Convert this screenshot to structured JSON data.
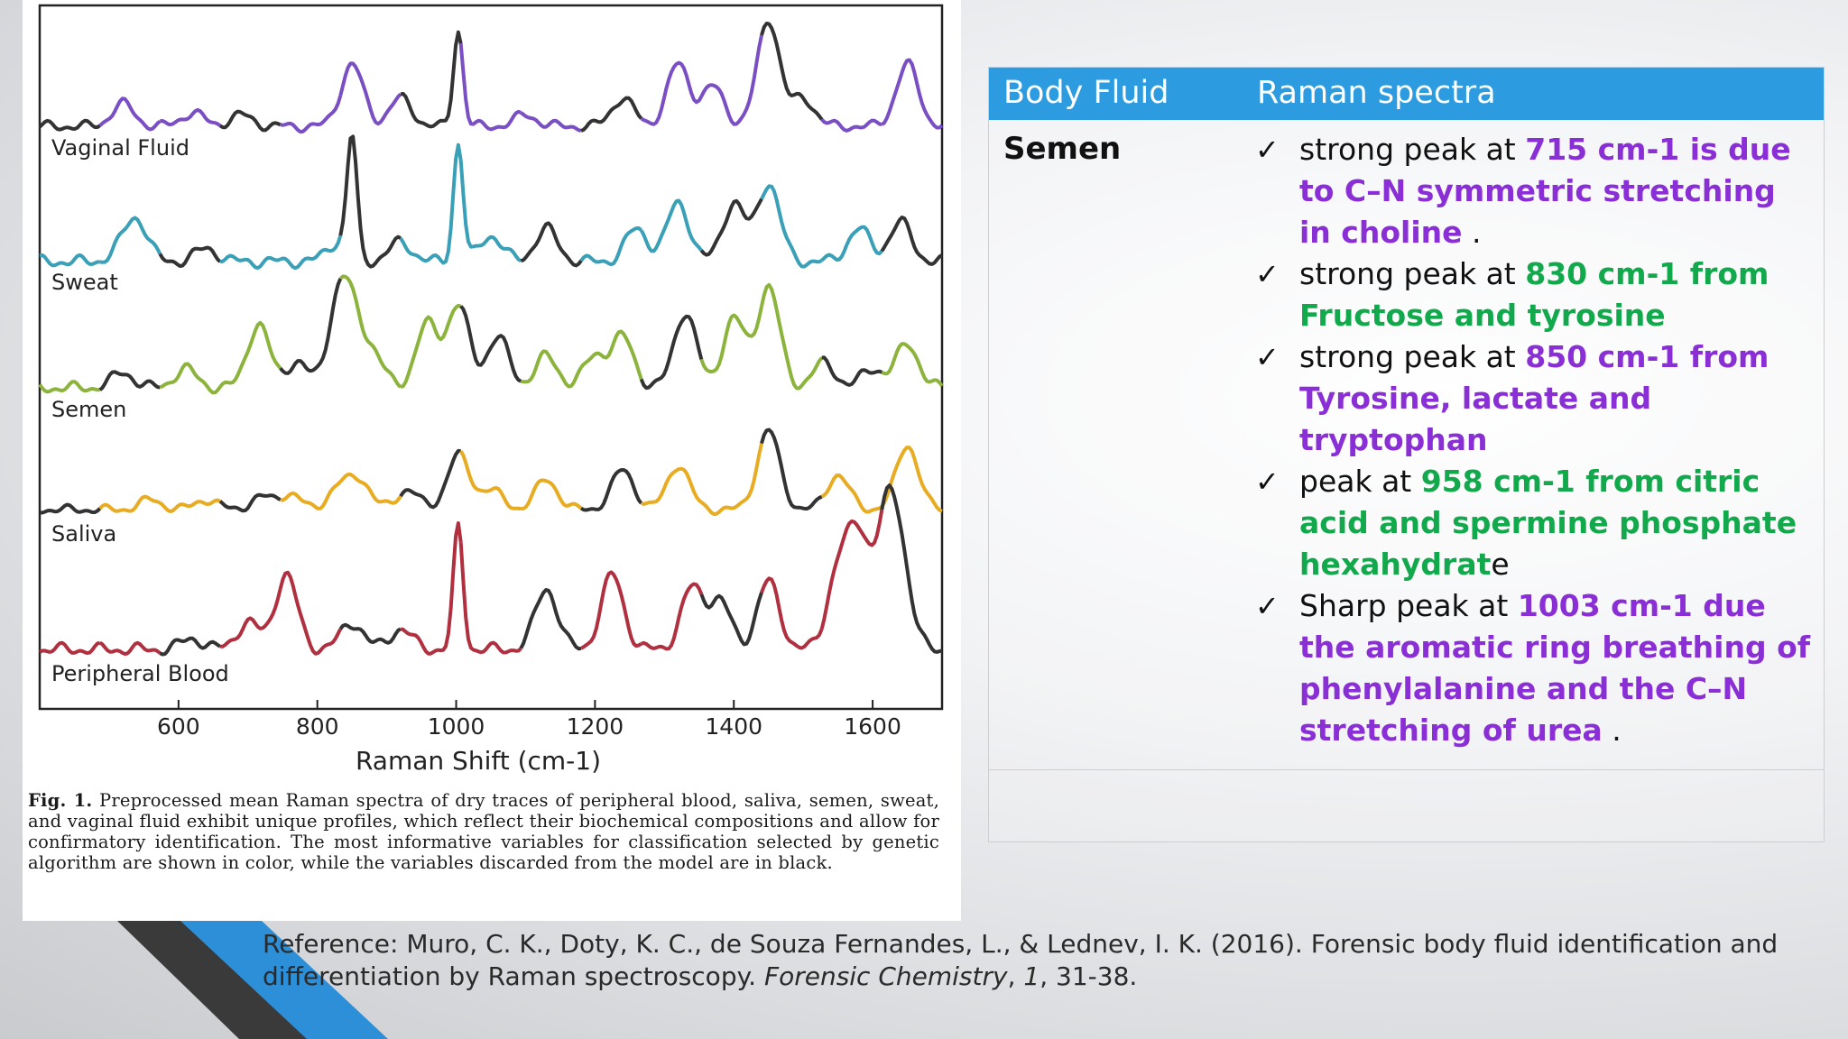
{
  "chart_data": {
    "type": "line",
    "xlabel": "Raman Shift (cm-1)",
    "x_ticks": [
      600,
      800,
      1000,
      1200,
      1400,
      1600
    ],
    "xlim": [
      400,
      1700
    ],
    "series": [
      {
        "name": "Vaginal Fluid",
        "color": "#7b4fc4",
        "peaks": [
          [
            520,
            0.2
          ],
          [
            620,
            0.12
          ],
          [
            690,
            0.1
          ],
          [
            850,
            0.55
          ],
          [
            920,
            0.25
          ],
          [
            1003,
            0.85
          ],
          [
            1100,
            0.1
          ],
          [
            1240,
            0.25
          ],
          [
            1320,
            0.55
          ],
          [
            1370,
            0.35
          ],
          [
            1450,
            0.95
          ],
          [
            1500,
            0.25
          ],
          [
            1650,
            0.55
          ]
        ]
      },
      {
        "name": "Sweat",
        "color": "#3aa0b8",
        "peaks": [
          [
            520,
            0.08
          ],
          [
            540,
            0.3
          ],
          [
            640,
            0.1
          ],
          [
            830,
            0.15
          ],
          [
            850,
            0.9
          ],
          [
            920,
            0.15
          ],
          [
            1003,
            0.9
          ],
          [
            1050,
            0.2
          ],
          [
            1130,
            0.25
          ],
          [
            1260,
            0.25
          ],
          [
            1320,
            0.45
          ],
          [
            1400,
            0.45
          ],
          [
            1450,
            0.6
          ],
          [
            1580,
            0.25
          ],
          [
            1640,
            0.3
          ]
        ]
      },
      {
        "name": "Semen",
        "color": "#8cb43c",
        "peaks": [
          [
            520,
            0.12
          ],
          [
            610,
            0.15
          ],
          [
            715,
            0.5
          ],
          [
            770,
            0.2
          ],
          [
            830,
            0.6
          ],
          [
            850,
            0.45
          ],
          [
            880,
            0.25
          ],
          [
            958,
            0.5
          ],
          [
            1003,
            0.65
          ],
          [
            1060,
            0.4
          ],
          [
            1130,
            0.25
          ],
          [
            1200,
            0.25
          ],
          [
            1240,
            0.4
          ],
          [
            1330,
            0.6
          ],
          [
            1400,
            0.55
          ],
          [
            1450,
            0.8
          ],
          [
            1530,
            0.2
          ],
          [
            1600,
            0.15
          ],
          [
            1650,
            0.35
          ]
        ]
      },
      {
        "name": "Saliva",
        "color": "#e8ac22",
        "peaks": [
          [
            560,
            0.1
          ],
          [
            640,
            0.1
          ],
          [
            720,
            0.12
          ],
          [
            760,
            0.15
          ],
          [
            830,
            0.2
          ],
          [
            860,
            0.3
          ],
          [
            930,
            0.2
          ],
          [
            1003,
            0.55
          ],
          [
            1050,
            0.2
          ],
          [
            1130,
            0.3
          ],
          [
            1240,
            0.4
          ],
          [
            1320,
            0.45
          ],
          [
            1450,
            0.8
          ],
          [
            1550,
            0.35
          ],
          [
            1650,
            0.65
          ]
        ]
      },
      {
        "name": "Peripheral Blood",
        "color": "#b03040",
        "peaks": [
          [
            620,
            0.08
          ],
          [
            700,
            0.2
          ],
          [
            755,
            0.55
          ],
          [
            850,
            0.2
          ],
          [
            920,
            0.15
          ],
          [
            1003,
            0.9
          ],
          [
            1130,
            0.45
          ],
          [
            1225,
            0.55
          ],
          [
            1340,
            0.45
          ],
          [
            1380,
            0.35
          ],
          [
            1450,
            0.5
          ],
          [
            1550,
            0.55
          ],
          [
            1580,
            0.8
          ],
          [
            1620,
            0.85
          ],
          [
            1640,
            0.55
          ]
        ]
      }
    ]
  },
  "caption": {
    "label": "Fig. 1.",
    "text": "Preprocessed mean Raman spectra of dry traces of peripheral blood, saliva, semen, sweat, and vaginal fluid exhibit unique profiles, which reflect their biochemical compositions and allow for confirmatory identification. The most informative variables for classification selected by genetic algorithm are shown in color, while the variables discarded from the model are in black."
  },
  "table": {
    "headers": [
      "Body Fluid",
      "Raman spectra"
    ],
    "fluid": "Semen",
    "check_mark": "✓",
    "items": [
      {
        "lead": "strong peak at ",
        "detail": "715 cm-1 is due to C–N symmetric stretching in choline",
        "tail": " .",
        "color": "purple"
      },
      {
        "lead": "strong peak at ",
        "detail": "830 cm-1 from Fructose and tyrosine",
        "tail": "",
        "color": "green"
      },
      {
        "lead": "strong peak at ",
        "detail": "850 cm-1 from Tyrosine, lactate and tryptophan",
        "tail": "",
        "color": "purple"
      },
      {
        "lead": "peak at ",
        "detail": "958 cm-1 from citric acid and spermine phosphate hexahydrat",
        "tail": "e",
        "color": "green"
      },
      {
        "lead": "Sharp peak at ",
        "detail": "1003 cm-1 due the aromatic ring breathing of phenylalanine and the C–N stretching of urea",
        "tail": " .",
        "color": "purple"
      }
    ]
  },
  "reference": {
    "prefix": "Reference: Muro, C. K., Doty, K. C., de Souza Fernandes, L., & Lednev, I. K. (2016). Forensic body fluid identification and differentiation by Raman spectroscopy. ",
    "journal": "Forensic Chemistry",
    "sep": ", ",
    "volume": "1",
    "pages": ", 31-38."
  },
  "colors": {
    "header_bg": "#2c9be0",
    "purple": "#8a2fd6",
    "green": "#12a94c",
    "deco_blue": "#2d8fd8",
    "deco_dark": "#3a3a3a"
  }
}
